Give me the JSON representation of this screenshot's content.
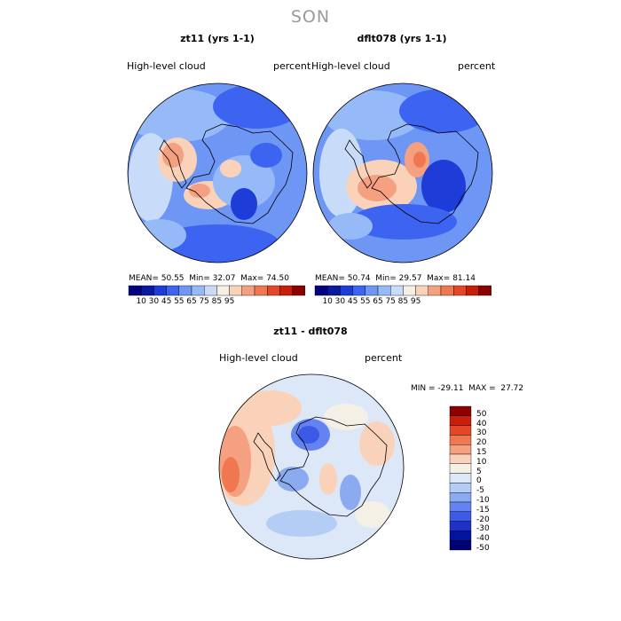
{
  "season": "SON",
  "panels": [
    {
      "title": "zt11 (yrs 1-1)",
      "variable": "High-level cloud",
      "units": "percent",
      "mean_label": "MEAN=",
      "mean": "50.55",
      "min_label": "Min=",
      "min": "32.07",
      "max_label": "Max=",
      "max": "74.50"
    },
    {
      "title": "dflt078 (yrs 1-1)",
      "variable": "High-level cloud",
      "units": "percent",
      "mean_label": "MEAN=",
      "mean": "50.74",
      "min_label": "Min=",
      "min": "29.57",
      "max_label": "Max=",
      "max": "81.14"
    }
  ],
  "diff": {
    "title": "zt11 - dflt078",
    "variable": "High-level cloud",
    "units": "percent",
    "minmax_text": "MIN = -29.11  MAX =  27.72"
  },
  "colorbar_abs": {
    "labels": [
      "10",
      "30",
      "45",
      "55",
      "65",
      "75",
      "85",
      "95"
    ],
    "colors": [
      "#000080",
      "#0a1aa0",
      "#1e3cd8",
      "#3c64f0",
      "#6e96f5",
      "#96b9f8",
      "#c8dcfa",
      "#f5f0e6",
      "#fad2b9",
      "#f5a080",
      "#f07850",
      "#e64628",
      "#c81e0a",
      "#8c0000"
    ]
  },
  "colorbar_diff": {
    "labels": [
      "50",
      "40",
      "30",
      "20",
      "15",
      "10",
      "5",
      "0",
      "-5",
      "-10",
      "-15",
      "-20",
      "-30",
      "-40",
      "-50"
    ],
    "colors": [
      "#8c0000",
      "#c81e0a",
      "#e64628",
      "#f07850",
      "#f5a080",
      "#fad2b9",
      "#f5f0e6",
      "#dce8f8",
      "#b4cdf5",
      "#8caaf0",
      "#6482f0",
      "#3c5ae6",
      "#1e32c8",
      "#0014a0",
      "#000070"
    ]
  },
  "chart_data": [
    {
      "type": "heatmap",
      "title": "zt11 (yrs 1-1)",
      "variable": "High-level cloud",
      "units": "percent",
      "projection": "south polar stereographic",
      "mean": 50.55,
      "min": 32.07,
      "max": 74.5
    },
    {
      "type": "heatmap",
      "title": "dflt078 (yrs 1-1)",
      "variable": "High-level cloud",
      "units": "percent",
      "projection": "south polar stereographic",
      "mean": 50.74,
      "min": 29.57,
      "max": 81.14
    },
    {
      "type": "heatmap",
      "title": "zt11 - dflt078",
      "variable": "High-level cloud",
      "units": "percent",
      "projection": "south polar stereographic",
      "min": -29.11,
      "max": 27.72
    }
  ]
}
